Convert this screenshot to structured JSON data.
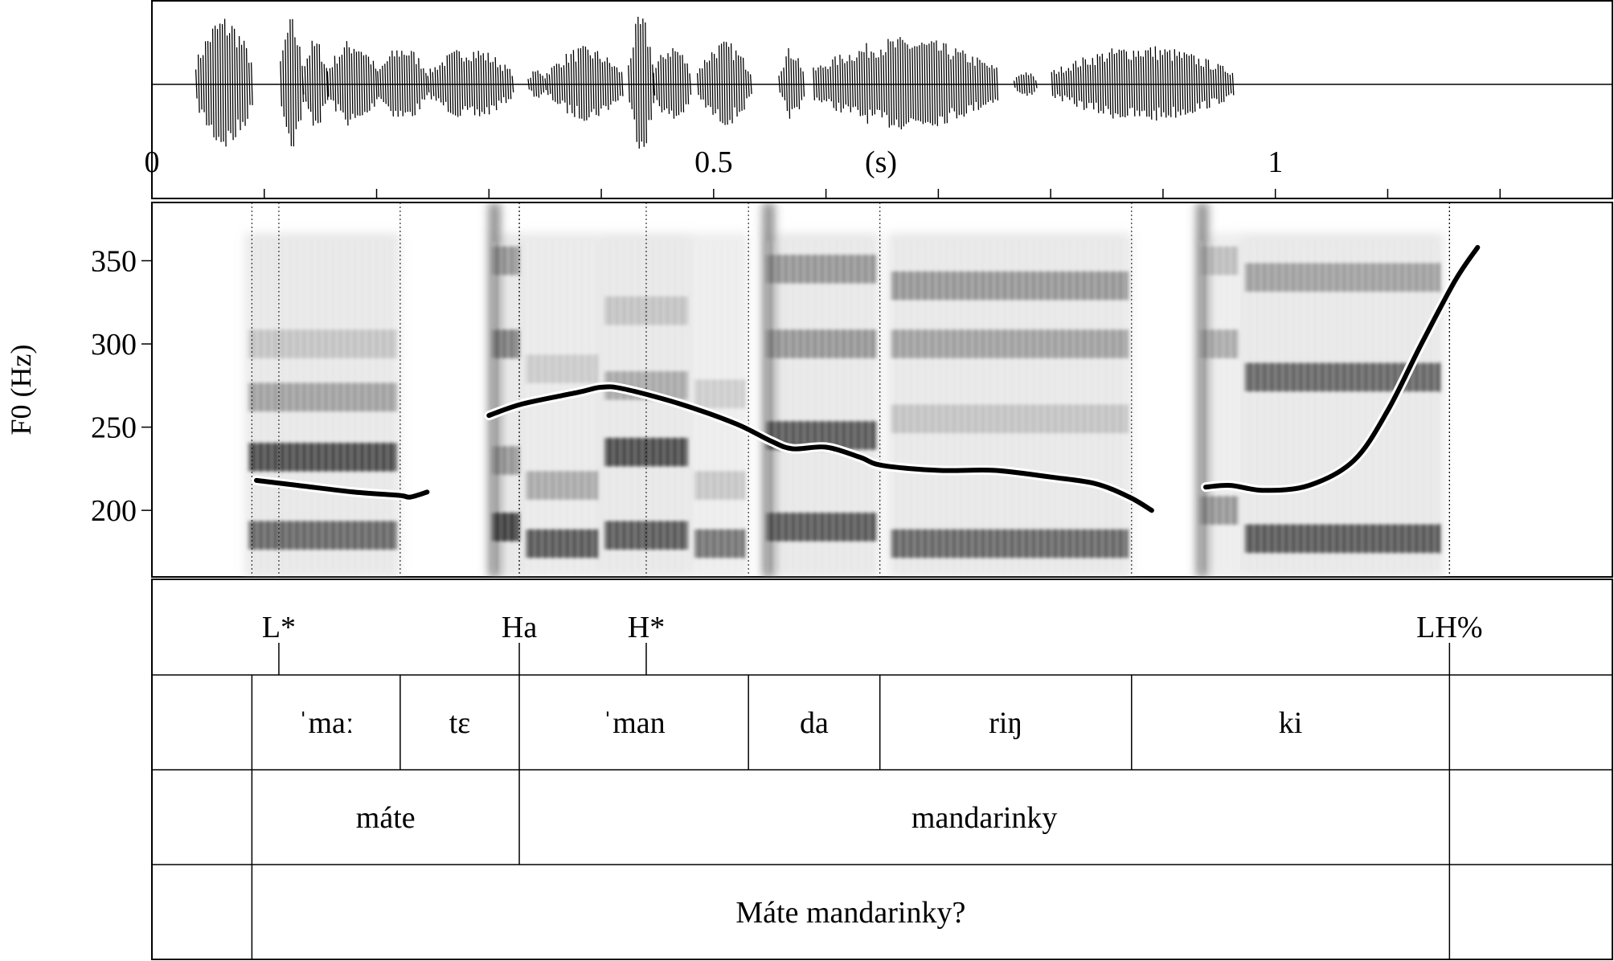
{
  "time_axis": {
    "unit_label": "(s)",
    "tick_labels": [
      {
        "label": "0",
        "t": 0
      },
      {
        "label": "0.5",
        "t": 0.5
      },
      {
        "label": "1",
        "t": 1.0
      }
    ],
    "minor_ticks": [
      0.1,
      0.2,
      0.3,
      0.4,
      0.5,
      0.6,
      0.7,
      0.8,
      0.9,
      1.0,
      1.1,
      1.2,
      1.3
    ],
    "range": [
      0,
      1.3
    ]
  },
  "spectrogram": {
    "ylabel": "F0 (Hz)",
    "yticks": [
      "350",
      "300",
      "250",
      "200"
    ]
  },
  "chart_data": {
    "type": "line",
    "title": "",
    "xlabel": "(s)",
    "ylabel": "F0 (Hz)",
    "xlim": [
      0,
      1.3
    ],
    "ylim": [
      160,
      385
    ],
    "yticks": [
      200,
      250,
      300,
      350
    ],
    "series": [
      {
        "points": [
          [
            0.093,
            218
          ],
          [
            0.13,
            215
          ],
          [
            0.18,
            211
          ],
          [
            0.22,
            209
          ],
          [
            0.23,
            208
          ],
          [
            0.245,
            211
          ]
        ]
      },
      {
        "points": [
          [
            0.3,
            257
          ],
          [
            0.33,
            264
          ],
          [
            0.38,
            271
          ],
          [
            0.4,
            274
          ],
          [
            0.42,
            273
          ],
          [
            0.47,
            264
          ],
          [
            0.52,
            252
          ],
          [
            0.55,
            242
          ],
          [
            0.57,
            237
          ],
          [
            0.6,
            238
          ],
          [
            0.63,
            232
          ],
          [
            0.65,
            227
          ],
          [
            0.7,
            224
          ],
          [
            0.75,
            224
          ],
          [
            0.8,
            220
          ],
          [
            0.84,
            216
          ],
          [
            0.87,
            208
          ],
          [
            0.89,
            200
          ]
        ]
      },
      {
        "points": [
          [
            0.938,
            214
          ],
          [
            0.96,
            215
          ],
          [
            0.99,
            212
          ],
          [
            1.03,
            215
          ],
          [
            1.07,
            230
          ],
          [
            1.1,
            260
          ],
          [
            1.13,
            300
          ],
          [
            1.16,
            338
          ],
          [
            1.18,
            358
          ]
        ]
      }
    ]
  },
  "tiers": {
    "tones": [
      {
        "label": "L*",
        "t": 0.113
      },
      {
        "label": "Ha",
        "t": 0.327
      },
      {
        "label": "H*",
        "t": 0.44
      },
      {
        "label": "LH%",
        "t": 1.155
      }
    ],
    "syllables": {
      "boundaries": [
        0.089,
        0.221,
        0.327,
        0.531,
        0.648,
        0.872,
        1.155
      ],
      "labels": [
        {
          "text": "ˈmaː",
          "from": 0.089,
          "to": 0.221
        },
        {
          "text": "tɛ",
          "from": 0.221,
          "to": 0.327
        },
        {
          "text": "ˈman",
          "from": 0.327,
          "to": 0.531
        },
        {
          "text": "da",
          "from": 0.531,
          "to": 0.648
        },
        {
          "text": "riŋ",
          "from": 0.648,
          "to": 0.872
        },
        {
          "text": "ki",
          "from": 0.872,
          "to": 1.155
        }
      ]
    },
    "words": {
      "boundaries": [
        0.089,
        0.327,
        1.155
      ],
      "labels": [
        {
          "text": "máte",
          "from": 0.089,
          "to": 0.327
        },
        {
          "text": "mandarinky",
          "from": 0.327,
          "to": 1.155
        }
      ]
    },
    "utterance": {
      "boundaries": [
        0.089,
        1.155
      ],
      "labels": [
        {
          "text": "Máte mandarinky?",
          "from": 0.089,
          "to": 1.155
        }
      ]
    }
  }
}
